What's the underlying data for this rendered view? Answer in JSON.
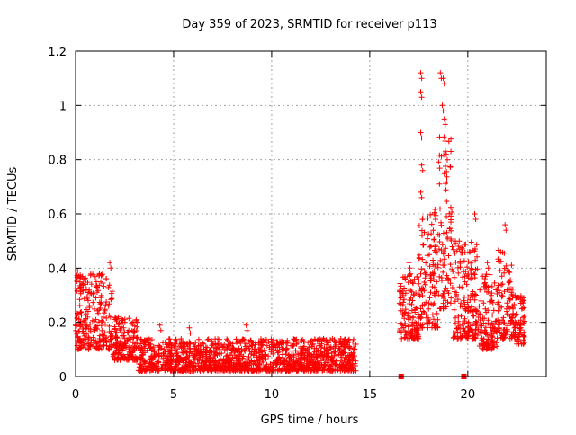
{
  "chart_data": {
    "type": "scatter",
    "title": "Day 359 of 2023, SRMTID for receiver p113",
    "xlabel": "GPS time / hours",
    "ylabel": "SRMTID / TECUs",
    "xlim": [
      0,
      24
    ],
    "ylim": [
      0,
      1.2
    ],
    "xticks": [
      0,
      5,
      10,
      15,
      20
    ],
    "xtick_labels": [
      "0",
      "5",
      "10",
      "15",
      "20"
    ],
    "yticks": [
      0,
      0.2,
      0.4,
      0.6,
      0.8,
      1.0,
      1.2
    ],
    "ytick_labels": [
      "0",
      "0.2",
      "0.4",
      "0.6",
      "0.8",
      "1",
      "1.2"
    ],
    "grid": true,
    "marker": "+",
    "color": "#ff0000",
    "gap_markers": [
      {
        "x": 16.6,
        "y": 0.0
      },
      {
        "x": 19.8,
        "y": 0.0
      }
    ],
    "series": [
      {
        "name": "SRMTID",
        "segments": [
          {
            "x_start": 0.0,
            "x_end": 1.9,
            "y_low": 0.1,
            "y_high": 0.38,
            "peaks": [
              {
                "x": 0.1,
                "y": 0.39
              },
              {
                "x": 0.5,
                "y": 0.34
              },
              {
                "x": 1.05,
                "y": 0.35
              },
              {
                "x": 1.75,
                "y": 0.42
              }
            ]
          },
          {
            "x_start": 1.9,
            "x_end": 3.2,
            "y_low": 0.06,
            "y_high": 0.22,
            "peaks": [
              {
                "x": 2.4,
                "y": 0.2
              }
            ]
          },
          {
            "x_start": 3.2,
            "x_end": 14.3,
            "y_low": 0.02,
            "y_high": 0.14,
            "peaks": [
              {
                "x": 4.3,
                "y": 0.19
              },
              {
                "x": 5.8,
                "y": 0.18
              },
              {
                "x": 8.7,
                "y": 0.19
              },
              {
                "x": 10.0,
                "y": 0.13
              }
            ]
          },
          {
            "x_start": 16.5,
            "x_end": 17.5,
            "y_low": 0.14,
            "y_high": 0.38,
            "peaks": [
              {
                "x": 17.0,
                "y": 0.42
              }
            ]
          },
          {
            "x_start": 17.5,
            "x_end": 18.5,
            "y_low": 0.18,
            "y_high": 0.62,
            "peaks": [
              {
                "x": 17.6,
                "y": 1.12
              },
              {
                "x": 17.6,
                "y": 1.05
              },
              {
                "x": 17.6,
                "y": 0.9
              },
              {
                "x": 17.65,
                "y": 0.78
              },
              {
                "x": 17.6,
                "y": 0.68
              },
              {
                "x": 18.3,
                "y": 0.6
              }
            ]
          },
          {
            "x_start": 18.5,
            "x_end": 19.2,
            "y_low": 0.25,
            "y_high": 0.9,
            "peaks": [
              {
                "x": 18.6,
                "y": 1.12
              },
              {
                "x": 18.75,
                "y": 1.1
              },
              {
                "x": 18.7,
                "y": 1.0
              },
              {
                "x": 18.8,
                "y": 0.95
              },
              {
                "x": 18.9,
                "y": 0.82
              }
            ]
          },
          {
            "x_start": 19.2,
            "x_end": 20.6,
            "y_low": 0.14,
            "y_high": 0.5,
            "peaks": [
              {
                "x": 20.35,
                "y": 0.6
              }
            ]
          },
          {
            "x_start": 20.6,
            "x_end": 21.5,
            "y_low": 0.1,
            "y_high": 0.38,
            "peaks": [
              {
                "x": 21.0,
                "y": 0.42
              }
            ]
          },
          {
            "x_start": 21.5,
            "x_end": 22.3,
            "y_low": 0.14,
            "y_high": 0.48,
            "peaks": [
              {
                "x": 21.9,
                "y": 0.56
              }
            ]
          },
          {
            "x_start": 22.3,
            "x_end": 22.9,
            "y_low": 0.12,
            "y_high": 0.3,
            "peaks": [
              {
                "x": 22.7,
                "y": 0.27
              }
            ]
          }
        ]
      }
    ]
  }
}
